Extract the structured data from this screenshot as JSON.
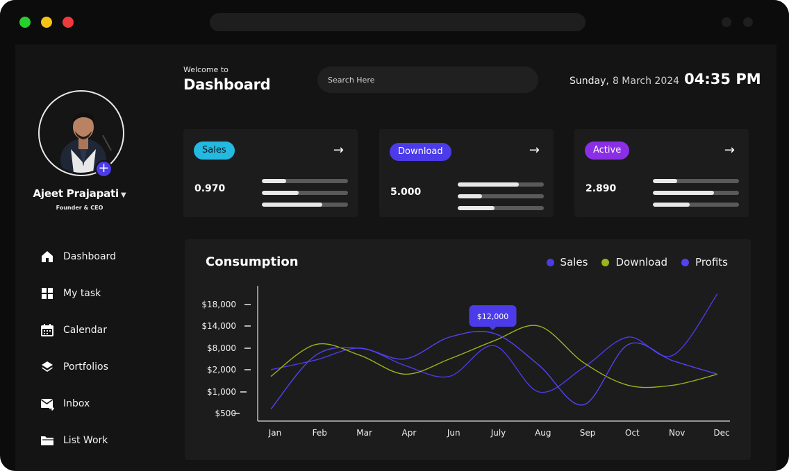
{
  "colors": {
    "accent": "#4b3be8",
    "sales_pill": "#23b9e0",
    "download_pill": "#4b3be8",
    "active_pill": "#8b2fe6",
    "series_sales": "#4b3be8",
    "series_download": "#9cb31e",
    "series_profits": "#5243f2"
  },
  "profile": {
    "name": "Ajeet Prajapati",
    "role": "Founder & CEO"
  },
  "nav": [
    {
      "label": "Dashboard",
      "icon": "home-icon"
    },
    {
      "label": "My task",
      "icon": "grid-icon"
    },
    {
      "label": "Calendar",
      "icon": "calendar-icon"
    },
    {
      "label": "Portfolios",
      "icon": "layers-icon"
    },
    {
      "label": "Inbox",
      "icon": "mail-icon"
    },
    {
      "label": "List Work",
      "icon": "folder-icon"
    }
  ],
  "header": {
    "welcome": "Welcome to",
    "title": "Dashboard",
    "search_placeholder": "Search Here",
    "day": "Sunday,",
    "date": "8 March 2024",
    "time": "04:35 PM"
  },
  "cards": [
    {
      "label": "Sales",
      "value": "0.970",
      "bars": [
        0.28,
        0.43,
        0.7
      ]
    },
    {
      "label": "Download",
      "value": "5.000",
      "bars": [
        0.71,
        0.28,
        0.43
      ]
    },
    {
      "label": "Active",
      "value": "2.890",
      "bars": [
        0.28,
        0.71,
        0.43
      ]
    }
  ],
  "chart_data": {
    "type": "line",
    "title": "Consumption",
    "categories": [
      "Jan",
      "Feb",
      "Mar",
      "Apr",
      "Jun",
      "July",
      "Aug",
      "Sep",
      "Oct",
      "Nov",
      "Dec"
    ],
    "y_ticks": [
      "$18,000",
      "$14,000",
      "$8,000",
      "$2,000",
      "$1,000",
      "$500"
    ],
    "y_tick_values": [
      18000,
      14000,
      8000,
      2000,
      1000,
      500
    ],
    "tooltip": {
      "label": "$12,000",
      "series": "Profits",
      "category": "July"
    },
    "series": [
      {
        "name": "Sales",
        "color": "#4b3be8",
        "values": [
          2000,
          4700,
          8000,
          3200,
          1700,
          8700,
          1000,
          2600,
          11000,
          6000,
          20000
        ]
      },
      {
        "name": "Download",
        "color": "#9cb31e",
        "values": [
          1700,
          9000,
          6000,
          1800,
          5000,
          10000,
          14000,
          4000,
          1300,
          1300,
          1800
        ]
      },
      {
        "name": "Profits",
        "color": "#5243f2",
        "values": [
          600,
          6000,
          8000,
          5000,
          11000,
          12000,
          3300,
          700,
          9000,
          4500,
          1800
        ]
      }
    ]
  }
}
